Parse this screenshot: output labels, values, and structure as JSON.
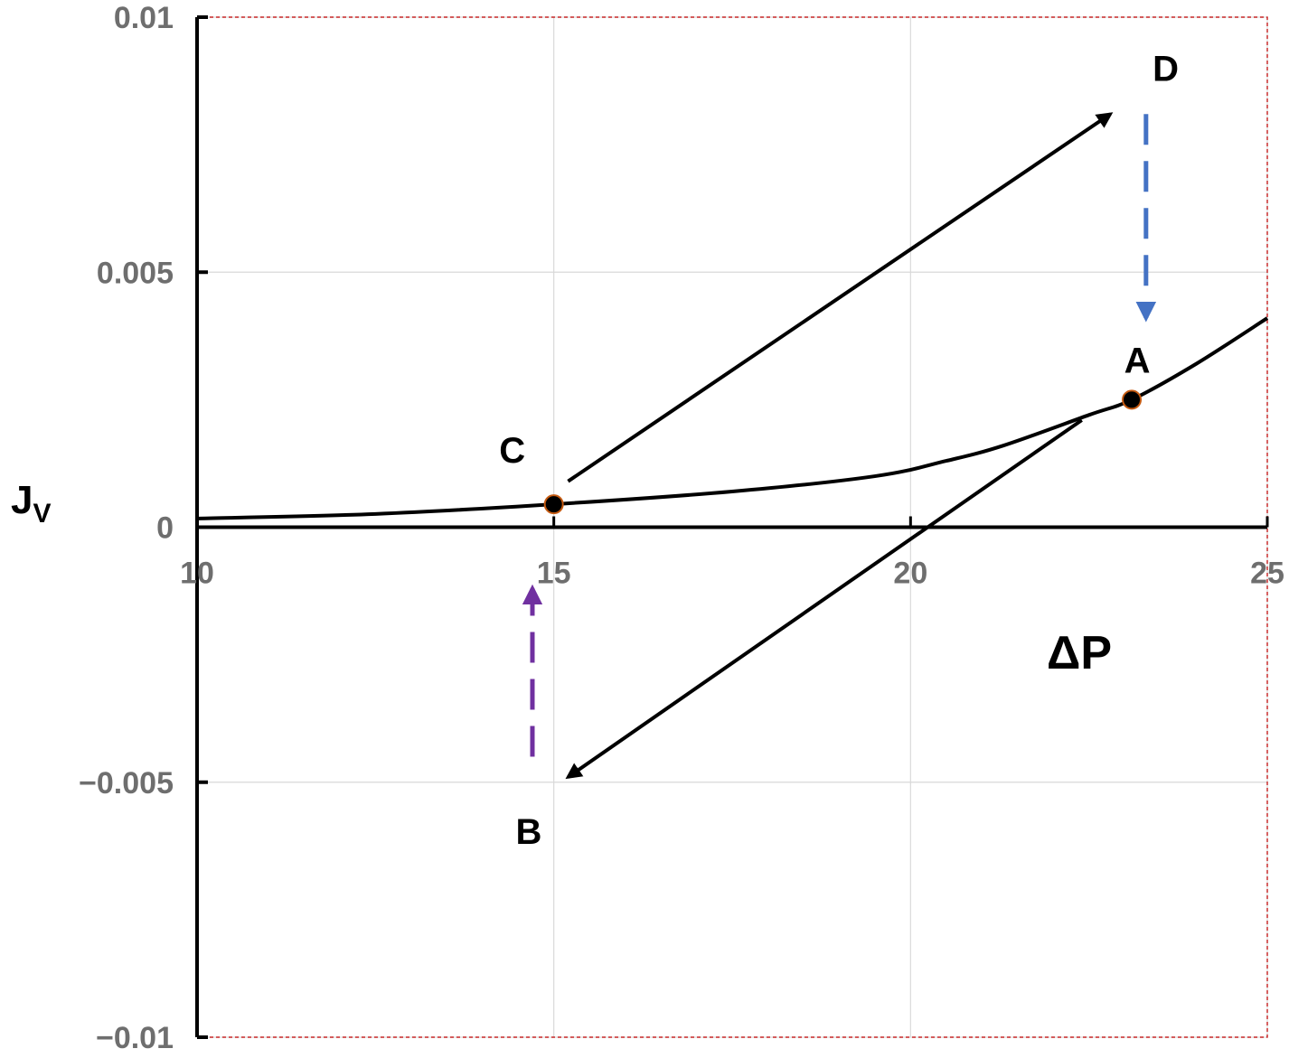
{
  "chart_data": {
    "type": "line",
    "xlabel": "ΔP",
    "ylabel": "J",
    "ylabel_subscript": "V",
    "xlim": [
      10,
      25
    ],
    "ylim": [
      -0.01,
      0.01
    ],
    "x_ticks": [
      10,
      15,
      20,
      25
    ],
    "x_tick_labels": [
      "10",
      "15",
      "20",
      "25"
    ],
    "y_ticks": [
      -0.01,
      -0.005,
      0,
      0.005,
      0.01
    ],
    "y_tick_labels": [
      "−0.01",
      "−0.005",
      "0",
      "0.005",
      "0.01"
    ],
    "grid": true,
    "series": [
      {
        "color": "#000000",
        "x": [
          10,
          12.5,
          15,
          17.5,
          19.5,
          20.5,
          21.3,
          22.5,
          23.1,
          24,
          25
        ],
        "y": [
          0.00017,
          0.00026,
          0.00045,
          0.0007,
          0.001,
          0.0013,
          0.0016,
          0.0022,
          0.0025,
          0.0032,
          0.0041
        ]
      }
    ],
    "points": [
      {
        "label": "A",
        "x": 23.1,
        "y": 0.0025,
        "marker": true
      },
      {
        "label": "C",
        "x": 15.0,
        "y": 0.00045,
        "marker": true
      },
      {
        "label": "D",
        "x": 23.5,
        "y": 0.009,
        "marker": false
      },
      {
        "label": "B",
        "x": 14.7,
        "y": -0.0055,
        "marker": false
      }
    ],
    "arrows": [
      {
        "from": [
          15.2,
          0.0009
        ],
        "to": [
          22.8,
          0.0081
        ],
        "color": "#000000",
        "style": "solid"
      },
      {
        "from": [
          22.4,
          0.0021
        ],
        "to": [
          15.2,
          -0.0049
        ],
        "color": "#000000",
        "style": "solid"
      },
      {
        "from": [
          23.3,
          0.0081
        ],
        "to": [
          23.3,
          0.0041
        ],
        "color": "#4472C4",
        "style": "dashed"
      },
      {
        "from": [
          14.7,
          -0.0045
        ],
        "to": [
          14.7,
          -0.0012
        ],
        "color": "#7030A0",
        "style": "dashed"
      }
    ],
    "colors": {
      "grid": "#d9d9d9",
      "frame": "#c00000",
      "tick_text": "#6e6e6e",
      "marker_edge": "#c55a11"
    }
  }
}
